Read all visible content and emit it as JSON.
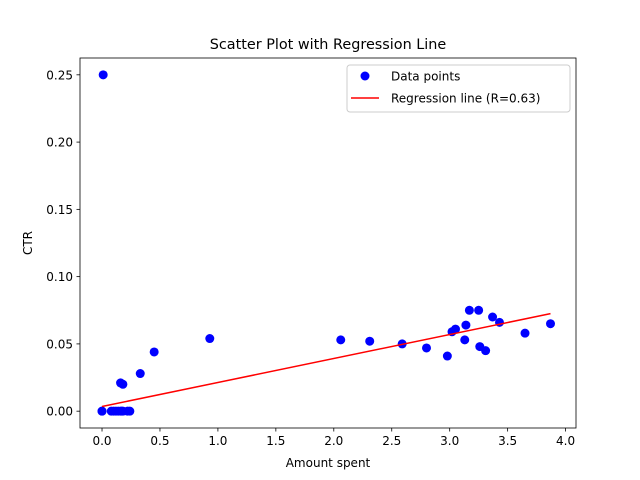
{
  "chart_data": {
    "type": "scatter",
    "title": "Scatter Plot with Regression Line",
    "xlabel": "Amount spent",
    "ylabel": "CTR",
    "xlim": [
      -0.19,
      4.09
    ],
    "ylim": [
      -0.0125,
      0.2625
    ],
    "xticks": [
      0.0,
      0.5,
      1.0,
      1.5,
      2.0,
      2.5,
      3.0,
      3.5,
      4.0
    ],
    "xtick_labels": [
      "0.0",
      "0.5",
      "1.0",
      "1.5",
      "2.0",
      "2.5",
      "3.0",
      "3.5",
      "4.0"
    ],
    "yticks": [
      0.0,
      0.05,
      0.1,
      0.15,
      0.2,
      0.25
    ],
    "ytick_labels": [
      "0.00",
      "0.05",
      "0.10",
      "0.15",
      "0.20",
      "0.25"
    ],
    "grid": false,
    "legend_position": "top-right",
    "legend": {
      "points_label": "Data points",
      "line_label": "Regression line (R=0.63)"
    },
    "colors": {
      "points": "#0000ff",
      "line": "#ff0000"
    },
    "series": [
      {
        "name": "Data points",
        "kind": "scatter",
        "x": [
          0.01,
          0.0,
          0.0,
          0.08,
          0.1,
          0.12,
          0.14,
          0.16,
          0.17,
          0.18,
          0.22,
          0.24,
          0.16,
          0.18,
          0.33,
          0.45,
          0.93,
          2.06,
          2.31,
          2.59,
          2.8,
          2.98,
          3.02,
          3.05,
          3.13,
          3.14,
          3.17,
          3.25,
          3.26,
          3.31,
          3.37,
          3.43,
          3.65,
          3.87
        ],
        "y": [
          0.25,
          0.0,
          0.0,
          0.0,
          0.0,
          0.0,
          0.0,
          0.0,
          0.0,
          0.0,
          0.0,
          0.0,
          0.021,
          0.02,
          0.028,
          0.044,
          0.054,
          0.053,
          0.052,
          0.05,
          0.047,
          0.041,
          0.059,
          0.061,
          0.053,
          0.064,
          0.075,
          0.075,
          0.048,
          0.045,
          0.07,
          0.066,
          0.058,
          0.065
        ]
      },
      {
        "name": "Regression line (R=0.63)",
        "kind": "line",
        "x": [
          0.0,
          3.87
        ],
        "y": [
          0.0035,
          0.0725
        ]
      }
    ]
  }
}
